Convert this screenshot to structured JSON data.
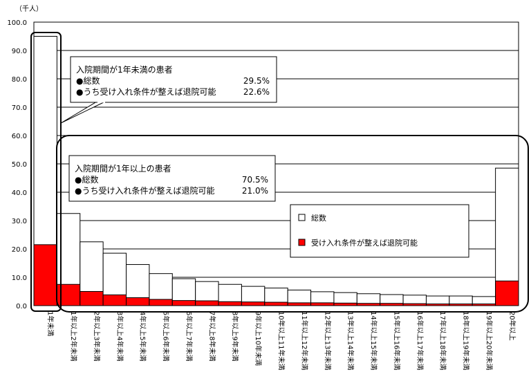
{
  "chart_data": {
    "type": "bar",
    "unit_label": "（千人）",
    "ylim": [
      0,
      100
    ],
    "yticks": [
      "0.0",
      "10.0",
      "20.0",
      "30.0",
      "40.0",
      "50.0",
      "60.0",
      "70.0",
      "80.0",
      "90.0",
      "100.0"
    ],
    "categories": [
      "1年未満",
      "1年以上2年未満",
      "2年以上3年未満",
      "3年以上4年未満",
      "4年以上5年未満",
      "5年以上6年未満",
      "6年以上7年未満",
      "7年以上8年未満",
      "8年以上9年未満",
      "9年以上10年未満",
      "10年以上11年未満",
      "11年以上12年未満",
      "12年以上13年未満",
      "13年以上14年未満",
      "14年以上15年未満",
      "15年以上16年未満",
      "16年以上17年未満",
      "17年以上18年未満",
      "18年以上19年未満",
      "19年以上20年未満",
      "20年以上"
    ],
    "series": [
      {
        "name": "総数",
        "values": [
          95.0,
          32.5,
          22.5,
          18.5,
          14.5,
          11.3,
          9.5,
          8.5,
          7.5,
          6.8,
          6.2,
          5.5,
          4.9,
          4.6,
          4.2,
          3.9,
          3.7,
          3.4,
          3.4,
          3.2,
          48.5
        ]
      },
      {
        "name": "受け入れ条件が整えば退院可能",
        "values": [
          21.5,
          7.5,
          5.0,
          3.8,
          2.8,
          2.2,
          1.8,
          1.7,
          1.4,
          1.3,
          1.2,
          1.0,
          1.0,
          0.9,
          0.8,
          0.8,
          0.7,
          0.6,
          0.6,
          0.6,
          8.7
        ]
      }
    ],
    "grid": true,
    "legend_position": "right"
  },
  "annotations": {
    "short_stay": {
      "title": "入院期間が1年未満の患者",
      "row1_label": "●総数",
      "row1_value": "29.5%",
      "row2_label": "●うち受け入れ条件が整えば退院可能",
      "row2_value": "22.6%"
    },
    "long_stay": {
      "title": "入院期間が1年以上の患者",
      "row1_label": "●総数",
      "row1_value": "70.5%",
      "row2_label": "●うち受け入れ条件が整えば退院可能",
      "row2_value": "21.0%"
    }
  },
  "colors": {
    "total": "#ffffff",
    "discharge": "#ff0000"
  }
}
